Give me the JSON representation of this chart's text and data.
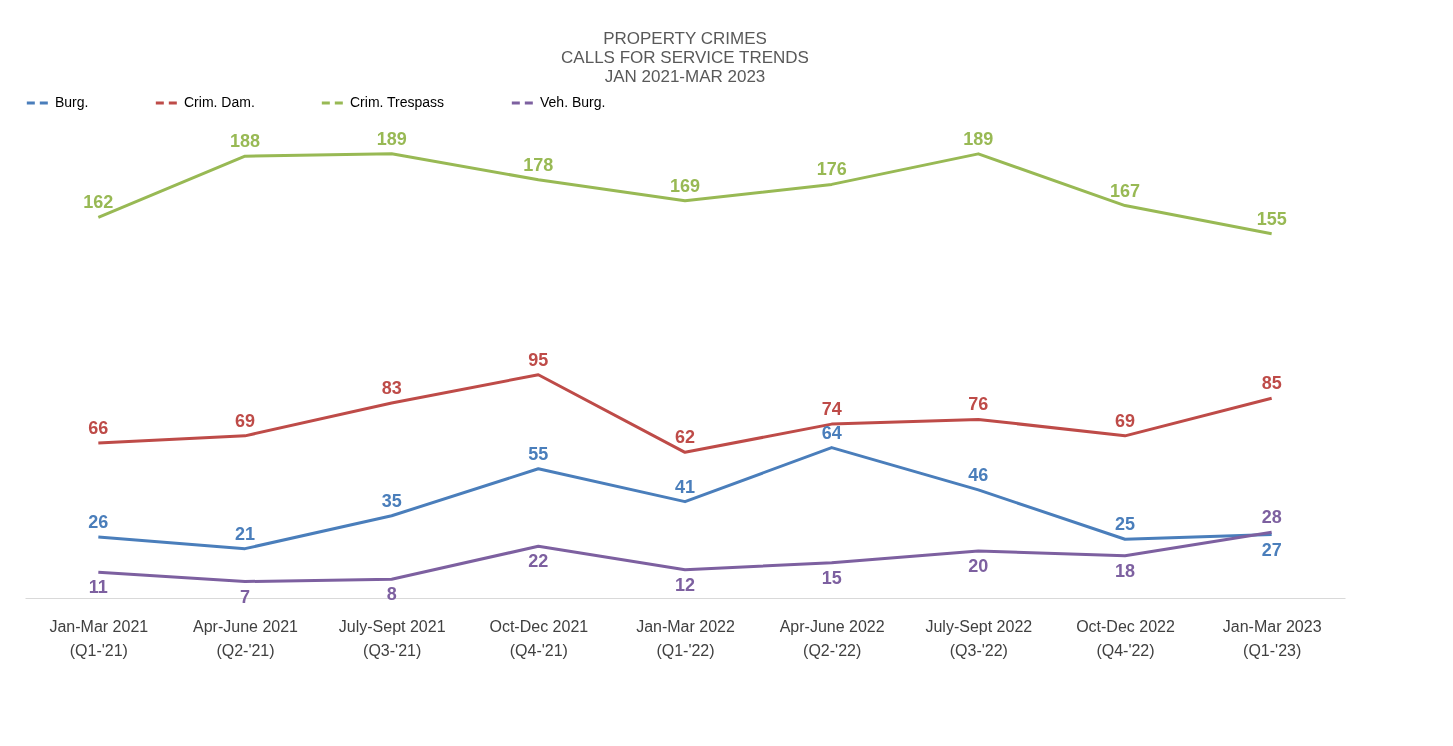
{
  "chart_data": {
    "type": "line",
    "title": "PROPERTY CRIMES\nCALLS FOR SERVICE TRENDS\nJAN 2021-MAR 2023",
    "categories": [
      "Jan-Mar 2021\n(Q1-'21)",
      "Apr-June 2021\n(Q2-'21)",
      "July-Sept 2021\n(Q3-'21)",
      "Oct-Dec 2021\n(Q4-'21)",
      "Jan-Mar 2022\n(Q1-'22)",
      "Apr-June 2022\n(Q2-'22)",
      "July-Sept 2022\n(Q3-'22)",
      "Oct-Dec 2022\n(Q4-'22)",
      "Jan-Mar 2023\n(Q1-'23)"
    ],
    "series": [
      {
        "name": "Burg.",
        "color": "#4a7ebb",
        "values": [
          26,
          21,
          35,
          55,
          41,
          64,
          46,
          25,
          27
        ]
      },
      {
        "name": "Crim. Dam.",
        "color": "#be4b48",
        "values": [
          66,
          69,
          83,
          95,
          62,
          74,
          76,
          69,
          85
        ]
      },
      {
        "name": "Crim. Trespass",
        "color": "#98b954",
        "values": [
          162,
          188,
          189,
          178,
          169,
          176,
          189,
          167,
          155
        ]
      },
      {
        "name": "Veh. Burg.",
        "color": "#7d60a0",
        "values": [
          11,
          7,
          8,
          22,
          12,
          15,
          20,
          18,
          28
        ]
      }
    ],
    "data_labels": true,
    "legend": "top",
    "grid": false,
    "marker": "none",
    "line_style": "solid"
  }
}
